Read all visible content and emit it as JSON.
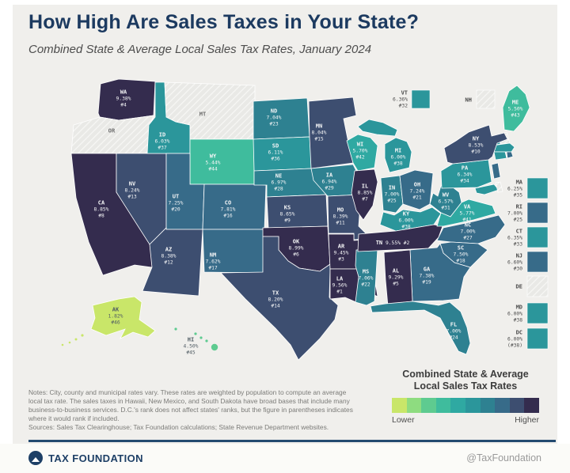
{
  "header": {
    "title": "How High Are Sales Taxes in Your State?",
    "subtitle": "Combined State & Average Local Sales Tax Rates, January 2024"
  },
  "legend": {
    "title_line1": "Combined State & Average",
    "title_line2": "Local Sales Tax Rates",
    "lower": "Lower",
    "higher": "Higher",
    "colors": [
      "#c9e669",
      "#8edc80",
      "#5ecb90",
      "#3fbc9d",
      "#2fa9a2",
      "#2b969b",
      "#2e8191",
      "#376b89",
      "#3d4e70",
      "#342c4e"
    ],
    "no_tax_hatch_base": "#e9e9e6"
  },
  "notes": "Notes: City, county and municipal rates vary. These rates are weighted by population to compute an average local tax rate. The sales taxes in Hawaii, New Mexico, and South Dakota have broad bases that include many business-to-business services. D.C.'s rank does not affect states' ranks, but the figure in parentheses indicates where it would rank if included.",
  "sources": "Sources: Sales Tax Clearinghouse; Tax Foundation calculations; State Revenue Department websites.",
  "footer": {
    "brand": "TAX FOUNDATION",
    "handle": "@TaxFoundation"
  },
  "chart_data": {
    "type": "choropleth",
    "unit": "combined state and average local sales tax rate",
    "legend_lower": "Lower",
    "legend_higher": "Higher",
    "states": [
      {
        "abbr": "WA",
        "rate": "9.38%",
        "rank": "#4",
        "value": 9.38,
        "bucket": 9
      },
      {
        "abbr": "OR",
        "rate": null,
        "rank": null,
        "value": 0,
        "no_tax": true
      },
      {
        "abbr": "CA",
        "rate": "8.85%",
        "rank": "#8",
        "value": 8.85,
        "bucket": 9
      },
      {
        "abbr": "NV",
        "rate": "8.24%",
        "rank": "#13",
        "value": 8.24,
        "bucket": 8
      },
      {
        "abbr": "ID",
        "rate": "6.03%",
        "rank": "#37",
        "value": 6.03,
        "bucket": 5
      },
      {
        "abbr": "MT",
        "rate": null,
        "rank": null,
        "value": 0,
        "no_tax": true
      },
      {
        "abbr": "WY",
        "rate": "5.44%",
        "rank": "#44",
        "value": 5.44,
        "bucket": 3
      },
      {
        "abbr": "UT",
        "rate": "7.25%",
        "rank": "#20",
        "value": 7.25,
        "bucket": 7
      },
      {
        "abbr": "CO",
        "rate": "7.81%",
        "rank": "#16",
        "value": 7.81,
        "bucket": 7
      },
      {
        "abbr": "AZ",
        "rate": "8.38%",
        "rank": "#12",
        "value": 8.38,
        "bucket": 8
      },
      {
        "abbr": "NM",
        "rate": "7.62%",
        "rank": "#17",
        "value": 7.62,
        "bucket": 7
      },
      {
        "abbr": "ND",
        "rate": "7.04%",
        "rank": "#23",
        "value": 7.04,
        "bucket": 6
      },
      {
        "abbr": "SD",
        "rate": "6.11%",
        "rank": "#36",
        "value": 6.11,
        "bucket": 5
      },
      {
        "abbr": "NE",
        "rate": "6.97%",
        "rank": "#28",
        "value": 6.97,
        "bucket": 6
      },
      {
        "abbr": "KS",
        "rate": "8.65%",
        "rank": "#9",
        "value": 8.65,
        "bucket": 8
      },
      {
        "abbr": "OK",
        "rate": "8.99%",
        "rank": "#6",
        "value": 8.99,
        "bucket": 9
      },
      {
        "abbr": "TX",
        "rate": "8.20%",
        "rank": "#14",
        "value": 8.2,
        "bucket": 8
      },
      {
        "abbr": "MN",
        "rate": "8.04%",
        "rank": "#15",
        "value": 8.04,
        "bucket": 8
      },
      {
        "abbr": "IA",
        "rate": "6.94%",
        "rank": "#29",
        "value": 6.94,
        "bucket": 6
      },
      {
        "abbr": "MO",
        "rate": "8.39%",
        "rank": "#11",
        "value": 8.39,
        "bucket": 8
      },
      {
        "abbr": "AR",
        "rate": "9.45%",
        "rank": "#3",
        "value": 9.45,
        "bucket": 9
      },
      {
        "abbr": "LA",
        "rate": "9.56%",
        "rank": "#1",
        "value": 9.56,
        "bucket": 9
      },
      {
        "abbr": "WI",
        "rate": "5.70%",
        "rank": "#42",
        "value": 5.7,
        "bucket": 4
      },
      {
        "abbr": "IL",
        "rate": "8.85%",
        "rank": "#7",
        "value": 8.85,
        "bucket": 9
      },
      {
        "abbr": "MS",
        "rate": "7.06%",
        "rank": "#22",
        "value": 7.06,
        "bucket": 6
      },
      {
        "abbr": "MI",
        "rate": "6.00%",
        "rank": "#38",
        "value": 6.0,
        "bucket": 5
      },
      {
        "abbr": "IN",
        "rate": "7.00%",
        "rank": "#25",
        "value": 7.0,
        "bucket": 6
      },
      {
        "abbr": "OH",
        "rate": "7.24%",
        "rank": "#21",
        "value": 7.24,
        "bucket": 7
      },
      {
        "abbr": "KY",
        "rate": "6.00%",
        "rank": "#38",
        "value": 6.0,
        "bucket": 5
      },
      {
        "abbr": "TN",
        "rate": "9.55%",
        "rank": "#2",
        "value": 9.55,
        "bucket": 9,
        "oneline": true
      },
      {
        "abbr": "WV",
        "rate": "6.57%",
        "rank": "#31",
        "value": 6.57,
        "bucket": 6
      },
      {
        "abbr": "VA",
        "rate": "5.77%",
        "rank": "#41",
        "value": 5.77,
        "bucket": 4
      },
      {
        "abbr": "NC",
        "rate": "7.00%",
        "rank": "#27",
        "value": 7.0,
        "bucket": 7
      },
      {
        "abbr": "SC",
        "rate": "7.50%",
        "rank": "#18",
        "value": 7.5,
        "bucket": 7
      },
      {
        "abbr": "GA",
        "rate": "7.38%",
        "rank": "#19",
        "value": 7.38,
        "bucket": 7
      },
      {
        "abbr": "AL",
        "rate": "9.29%",
        "rank": "#5",
        "value": 9.29,
        "bucket": 9
      },
      {
        "abbr": "FL",
        "rate": "7.00%",
        "rank": "#24",
        "value": 7.0,
        "bucket": 6
      },
      {
        "abbr": "PA",
        "rate": "6.34%",
        "rank": "#34",
        "value": 6.34,
        "bucket": 5
      },
      {
        "abbr": "NY",
        "rate": "8.53%",
        "rank": "#10",
        "value": 8.53,
        "bucket": 8
      },
      {
        "abbr": "ME",
        "rate": "5.50%",
        "rank": "#43",
        "value": 5.5,
        "bucket": 3
      },
      {
        "abbr": "VT",
        "rate": "6.36%",
        "rank": "#32",
        "value": 6.36,
        "bucket": 5
      },
      {
        "abbr": "NH",
        "rate": null,
        "rank": null,
        "value": 0,
        "no_tax": true
      },
      {
        "abbr": "MA",
        "rate": "6.25%",
        "rank": "#35",
        "value": 6.25,
        "bucket": 5
      },
      {
        "abbr": "RI",
        "rate": "7.00%",
        "rank": "#25",
        "value": 7.0,
        "bucket": 7
      },
      {
        "abbr": "CT",
        "rate": "6.35%",
        "rank": "#33",
        "value": 6.35,
        "bucket": 5
      },
      {
        "abbr": "NJ",
        "rate": "6.60%",
        "rank": "#30",
        "value": 6.6,
        "bucket": 7
      },
      {
        "abbr": "DE",
        "rate": null,
        "rank": null,
        "value": 0,
        "no_tax": true
      },
      {
        "abbr": "MD",
        "rate": "6.00%",
        "rank": "#38",
        "value": 6.0,
        "bucket": 5
      },
      {
        "abbr": "DC",
        "rate": "6.00%",
        "rank": "(#38)",
        "value": 6.0,
        "bucket": 5
      },
      {
        "abbr": "AK",
        "rate": "1.82%",
        "rank": "#46",
        "value": 1.82,
        "bucket": 0,
        "dark_label": true
      },
      {
        "abbr": "HI",
        "rate": "4.50%",
        "rank": "#45",
        "value": 4.5,
        "bucket": 2,
        "dark_label": true
      }
    ]
  }
}
